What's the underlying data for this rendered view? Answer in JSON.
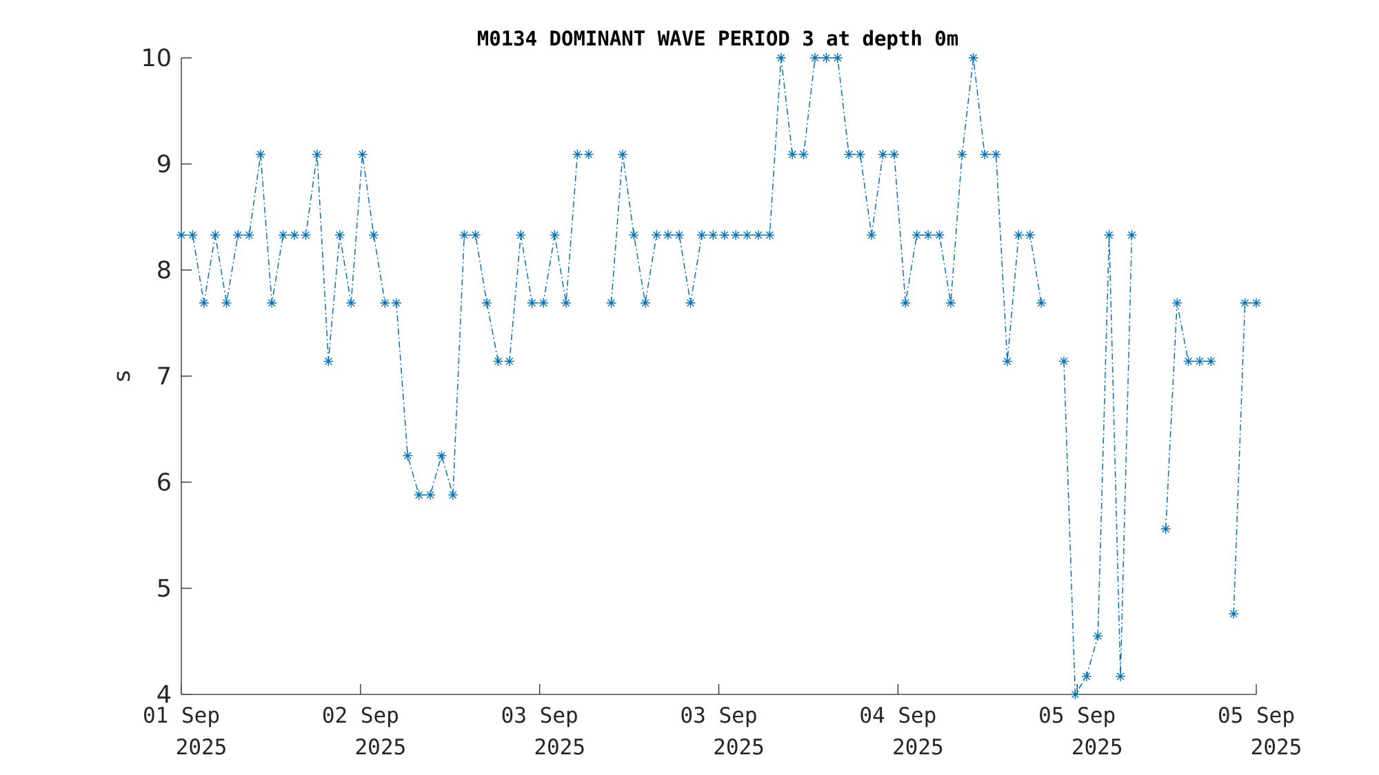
{
  "chart_data": {
    "type": "line",
    "title": "M0134 DOMINANT WAVE PERIOD 3 at depth 0m",
    "xlabel": "",
    "ylabel": "s",
    "ylim": [
      4,
      10
    ],
    "yticks": [
      "4",
      "5",
      "6",
      "7",
      "8",
      "9",
      "10"
    ],
    "xticks": [
      {
        "day": "01 Sep",
        "year": "2025"
      },
      {
        "day": "02 Sep",
        "year": "2025"
      },
      {
        "day": "03 Sep",
        "year": "2025"
      },
      {
        "day": "03 Sep",
        "year": "2025"
      },
      {
        "day": "04 Sep",
        "year": "2025"
      },
      {
        "day": "05 Sep",
        "year": "2025"
      },
      {
        "day": "05 Sep",
        "year": "2025"
      }
    ],
    "line_style": "dash-dot",
    "marker": "asterisk",
    "color": "#0072BD",
    "grid": false,
    "legend": "none",
    "series": [
      {
        "values": [
          8.33,
          8.33,
          7.69,
          8.33,
          7.69,
          8.33,
          8.33,
          9.09,
          7.69,
          8.33,
          8.33,
          8.33,
          9.09,
          7.14,
          8.33,
          7.69,
          9.09,
          8.33,
          7.69,
          7.69,
          6.25,
          5.88,
          5.88,
          6.25,
          5.88,
          8.33,
          8.33,
          7.69,
          7.14,
          7.14,
          8.33,
          7.69,
          7.69,
          8.33,
          7.69,
          9.09,
          9.09,
          null,
          7.69,
          9.09,
          8.33,
          7.69,
          8.33,
          8.33,
          8.33,
          7.69,
          8.33,
          8.33,
          8.33,
          8.33,
          8.33,
          8.33,
          8.33,
          10.0,
          9.09,
          9.09,
          10.0,
          10.0,
          10.0,
          9.09,
          9.09,
          8.33,
          9.09,
          9.09,
          7.69,
          8.33,
          8.33,
          8.33,
          7.69,
          9.09,
          10.0,
          9.09,
          9.09,
          7.14,
          8.33,
          8.33,
          7.69,
          null,
          7.14,
          4.0,
          4.17,
          4.55,
          8.33,
          4.17,
          8.33,
          null,
          null,
          5.56,
          7.69,
          7.14,
          7.14,
          7.14,
          null,
          4.76,
          7.69,
          7.69
        ]
      }
    ]
  }
}
